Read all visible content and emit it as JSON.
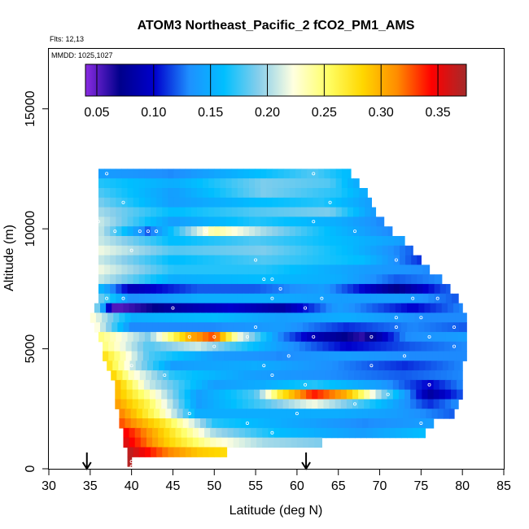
{
  "chart_data": {
    "type": "heatmap",
    "title": "ATOM3 Northeast_Pacific_2 fCO2_PM1_AMS",
    "flights_label": "Flts: 12,13",
    "mmdd_label": "MMDD: 1025,1027",
    "xlabel": "Latitude (deg N)",
    "ylabel": "Altitude (m)",
    "xlim": [
      30,
      85
    ],
    "ylim": [
      0,
      17500
    ],
    "xticks": [
      30,
      35,
      40,
      45,
      50,
      55,
      60,
      65,
      70,
      75,
      80,
      85
    ],
    "yticks": [
      0,
      5000,
      10000,
      15000
    ],
    "colorbar": {
      "range": [
        0.04,
        0.375
      ],
      "ticks": [
        0.05,
        0.1,
        0.15,
        0.2,
        0.25,
        0.3,
        0.35
      ],
      "tick_labels": [
        "0.05",
        "0.10",
        "0.15",
        "0.20",
        "0.25",
        "0.30",
        "0.35"
      ],
      "colors": [
        "#8a2be2",
        "#00008b",
        "#0000cd",
        "#1e90ff",
        "#00bfff",
        "#87ceeb",
        "#ffffe0",
        "#ffff66",
        "#ffd700",
        "#ff8c00",
        "#ff0000",
        "#a52a2a"
      ]
    },
    "arrows_latitude": [
      34.6,
      61.1
    ],
    "bands": [
      {
        "alt": 12300,
        "lat_min": 36.0,
        "lat_max": 66.5,
        "values": [
          [
            36,
            0.14
          ],
          [
            45,
            0.13
          ],
          [
            55,
            0.16
          ],
          [
            62,
            0.18
          ],
          [
            66,
            0.16
          ]
        ]
      },
      {
        "alt": 11900,
        "lat_min": 36.0,
        "lat_max": 67.5,
        "values": [
          [
            36,
            0.17
          ],
          [
            45,
            0.15
          ],
          [
            56,
            0.19
          ],
          [
            64,
            0.18
          ],
          [
            67,
            0.15
          ]
        ]
      },
      {
        "alt": 11500,
        "lat_min": 36.0,
        "lat_max": 68.5,
        "values": [
          [
            36,
            0.18
          ],
          [
            45,
            0.14
          ],
          [
            56,
            0.19
          ],
          [
            65,
            0.17
          ],
          [
            68,
            0.15
          ]
        ]
      },
      {
        "alt": 11100,
        "lat_min": 36.0,
        "lat_max": 69.0,
        "values": [
          [
            36,
            0.19
          ],
          [
            45,
            0.14
          ],
          [
            55,
            0.16
          ],
          [
            63,
            0.17
          ],
          [
            69,
            0.14
          ]
        ]
      },
      {
        "alt": 10700,
        "lat_min": 36.0,
        "lat_max": 69.5,
        "values": [
          [
            36,
            0.2
          ],
          [
            45,
            0.16
          ],
          [
            55,
            0.18
          ],
          [
            64,
            0.19
          ],
          [
            69,
            0.14
          ]
        ]
      },
      {
        "alt": 10300,
        "lat_min": 36.0,
        "lat_max": 70.5,
        "values": [
          [
            36,
            0.21
          ],
          [
            45,
            0.14
          ],
          [
            55,
            0.17
          ],
          [
            65,
            0.15
          ],
          [
            70,
            0.13
          ]
        ]
      },
      {
        "alt": 9900,
        "lat_min": 36.0,
        "lat_max": 71.5,
        "values": [
          [
            36,
            0.21
          ],
          [
            42,
            0.12
          ],
          [
            50,
            0.24
          ],
          [
            56,
            0.2
          ],
          [
            64,
            0.16
          ],
          [
            71,
            0.13
          ]
        ]
      },
      {
        "alt": 9500,
        "lat_min": 36.0,
        "lat_max": 73.0,
        "values": [
          [
            36,
            0.21
          ],
          [
            45,
            0.16
          ],
          [
            55,
            0.18
          ],
          [
            65,
            0.16
          ],
          [
            73,
            0.14
          ]
        ]
      },
      {
        "alt": 9100,
        "lat_min": 36.0,
        "lat_max": 74.0,
        "values": [
          [
            36,
            0.22
          ],
          [
            45,
            0.18
          ],
          [
            56,
            0.19
          ],
          [
            66,
            0.16
          ],
          [
            74,
            0.12
          ]
        ]
      },
      {
        "alt": 8700,
        "lat_min": 36.0,
        "lat_max": 75.0,
        "values": [
          [
            36,
            0.21
          ],
          [
            45,
            0.16
          ],
          [
            56,
            0.18
          ],
          [
            68,
            0.16
          ],
          [
            75,
            0.11
          ]
        ]
      },
      {
        "alt": 8300,
        "lat_min": 36.0,
        "lat_max": 76.0,
        "values": [
          [
            36,
            0.22
          ],
          [
            45,
            0.17
          ],
          [
            56,
            0.17
          ],
          [
            68,
            0.14
          ],
          [
            76,
            0.13
          ]
        ]
      },
      {
        "alt": 7900,
        "lat_min": 36.0,
        "lat_max": 77.5,
        "values": [
          [
            36,
            0.21
          ],
          [
            45,
            0.15
          ],
          [
            55,
            0.16
          ],
          [
            65,
            0.15
          ],
          [
            72,
            0.12
          ],
          [
            77,
            0.13
          ]
        ]
      },
      {
        "alt": 7500,
        "lat_min": 36.0,
        "lat_max": 78.5,
        "values": [
          [
            36,
            0.16
          ],
          [
            40,
            0.09
          ],
          [
            48,
            0.12
          ],
          [
            55,
            0.12
          ],
          [
            63,
            0.14
          ],
          [
            72,
            0.07
          ],
          [
            78,
            0.12
          ]
        ]
      },
      {
        "alt": 7100,
        "lat_min": 36.0,
        "lat_max": 79.5,
        "values": [
          [
            36,
            0.19
          ],
          [
            40,
            0.13
          ],
          [
            48,
            0.15
          ],
          [
            56,
            0.15
          ],
          [
            65,
            0.14
          ],
          [
            73,
            0.14
          ],
          [
            79,
            0.12
          ]
        ]
      },
      {
        "alt": 6700,
        "lat_min": 35.5,
        "lat_max": 80.0,
        "values": [
          [
            35.5,
            0.21
          ],
          [
            38,
            0.05
          ],
          [
            45,
            0.08
          ],
          [
            52,
            0.1
          ],
          [
            58,
            0.08
          ],
          [
            65,
            0.14
          ],
          [
            74,
            0.1
          ],
          [
            80,
            0.13
          ]
        ]
      },
      {
        "alt": 6300,
        "lat_min": 35.0,
        "lat_max": 80.5,
        "values": [
          [
            35,
            0.23
          ],
          [
            40,
            0.15
          ],
          [
            50,
            0.16
          ],
          [
            58,
            0.14
          ],
          [
            66,
            0.15
          ],
          [
            75,
            0.13
          ],
          [
            80,
            0.13
          ]
        ]
      },
      {
        "alt": 5900,
        "lat_min": 35.5,
        "lat_max": 80.5,
        "values": [
          [
            35.5,
            0.23
          ],
          [
            40,
            0.13
          ],
          [
            50,
            0.13
          ],
          [
            58,
            0.14
          ],
          [
            66,
            0.11
          ],
          [
            74,
            0.13
          ],
          [
            80,
            0.12
          ]
        ]
      },
      {
        "alt": 5500,
        "lat_min": 36.0,
        "lat_max": 80.5,
        "values": [
          [
            36,
            0.25
          ],
          [
            42,
            0.19
          ],
          [
            47,
            0.3
          ],
          [
            50,
            0.33
          ],
          [
            53,
            0.22
          ],
          [
            58,
            0.13
          ],
          [
            62,
            0.09
          ],
          [
            68,
            0.06
          ],
          [
            73,
            0.13
          ],
          [
            80,
            0.14
          ]
        ]
      },
      {
        "alt": 5100,
        "lat_min": 36.5,
        "lat_max": 80.5,
        "values": [
          [
            36.5,
            0.25
          ],
          [
            42,
            0.18
          ],
          [
            48,
            0.21
          ],
          [
            52,
            0.18
          ],
          [
            58,
            0.14
          ],
          [
            66,
            0.1
          ],
          [
            74,
            0.12
          ],
          [
            80,
            0.13
          ]
        ]
      },
      {
        "alt": 4700,
        "lat_min": 36.5,
        "lat_max": 80.5,
        "values": [
          [
            36.5,
            0.28
          ],
          [
            42,
            0.18
          ],
          [
            50,
            0.14
          ],
          [
            58,
            0.13
          ],
          [
            66,
            0.14
          ],
          [
            74,
            0.13
          ],
          [
            80,
            0.13
          ]
        ]
      },
      {
        "alt": 4300,
        "lat_min": 37.0,
        "lat_max": 80.0,
        "values": [
          [
            37,
            0.28
          ],
          [
            40,
            0.21
          ],
          [
            45,
            0.14
          ],
          [
            55,
            0.15
          ],
          [
            65,
            0.13
          ],
          [
            73,
            0.11
          ],
          [
            80,
            0.13
          ]
        ]
      },
      {
        "alt": 3900,
        "lat_min": 37.5,
        "lat_max": 80.0,
        "values": [
          [
            37.5,
            0.29
          ],
          [
            40,
            0.23
          ],
          [
            45,
            0.17
          ],
          [
            55,
            0.14
          ],
          [
            65,
            0.13
          ],
          [
            73,
            0.12
          ],
          [
            80,
            0.13
          ]
        ]
      },
      {
        "alt": 3500,
        "lat_min": 38.0,
        "lat_max": 80.0,
        "values": [
          [
            38,
            0.3
          ],
          [
            42,
            0.21
          ],
          [
            50,
            0.14
          ],
          [
            56,
            0.15
          ],
          [
            62,
            0.17
          ],
          [
            70,
            0.14
          ],
          [
            76,
            0.1
          ],
          [
            80,
            0.13
          ]
        ]
      },
      {
        "alt": 3100,
        "lat_min": 38.0,
        "lat_max": 80.0,
        "values": [
          [
            38,
            0.3
          ],
          [
            42,
            0.24
          ],
          [
            48,
            0.14
          ],
          [
            55,
            0.18
          ],
          [
            58,
            0.27
          ],
          [
            62,
            0.34
          ],
          [
            66,
            0.3
          ],
          [
            70,
            0.2
          ],
          [
            76,
            0.08
          ],
          [
            80,
            0.12
          ]
        ]
      },
      {
        "alt": 2700,
        "lat_min": 38.0,
        "lat_max": 79.5,
        "values": [
          [
            38,
            0.31
          ],
          [
            42,
            0.26
          ],
          [
            48,
            0.14
          ],
          [
            56,
            0.18
          ],
          [
            62,
            0.22
          ],
          [
            70,
            0.16
          ],
          [
            76,
            0.11
          ],
          [
            79,
            0.13
          ]
        ]
      },
      {
        "alt": 2300,
        "lat_min": 38.5,
        "lat_max": 79.0,
        "values": [
          [
            38.5,
            0.32
          ],
          [
            43,
            0.25
          ],
          [
            48,
            0.15
          ],
          [
            56,
            0.15
          ],
          [
            65,
            0.15
          ],
          [
            72,
            0.14
          ],
          [
            79,
            0.12
          ]
        ]
      },
      {
        "alt": 1900,
        "lat_min": 38.5,
        "lat_max": 76.5,
        "values": [
          [
            38.5,
            0.33
          ],
          [
            44,
            0.27
          ],
          [
            50,
            0.17
          ],
          [
            58,
            0.15
          ],
          [
            68,
            0.13
          ],
          [
            76,
            0.14
          ]
        ]
      },
      {
        "alt": 1500,
        "lat_min": 39.0,
        "lat_max": 75.5,
        "values": [
          [
            39,
            0.35
          ],
          [
            45,
            0.27
          ],
          [
            50,
            0.2
          ],
          [
            58,
            0.16
          ],
          [
            68,
            0.14
          ],
          [
            75,
            0.16
          ]
        ]
      },
      {
        "alt": 1100,
        "lat_min": 39.0,
        "lat_max": 63.0,
        "values": [
          [
            39,
            0.36
          ],
          [
            44,
            0.29
          ],
          [
            50,
            0.23
          ],
          [
            56,
            0.2
          ],
          [
            63,
            0.19
          ]
        ]
      },
      {
        "alt": 700,
        "lat_min": 39.5,
        "lat_max": 51.5,
        "values": [
          [
            39.5,
            0.37
          ],
          [
            44,
            0.32
          ],
          [
            48,
            0.29
          ],
          [
            51.5,
            0.28
          ]
        ]
      },
      {
        "alt": 300,
        "lat_min": 39.5,
        "lat_max": 40.0,
        "values": [
          [
            39.5,
            0.37
          ],
          [
            40,
            0.37
          ]
        ]
      }
    ],
    "sample_points": [
      [
        37,
        12300
      ],
      [
        62,
        12300
      ],
      [
        39,
        11100
      ],
      [
        64,
        11100
      ],
      [
        36,
        10300
      ],
      [
        62,
        10300
      ],
      [
        73,
        10300
      ],
      [
        38,
        9900
      ],
      [
        41,
        9900
      ],
      [
        42,
        9900
      ],
      [
        43,
        9900
      ],
      [
        49,
        9900
      ],
      [
        67,
        9900
      ],
      [
        40,
        9100
      ],
      [
        55,
        8700
      ],
      [
        72,
        8700
      ],
      [
        56,
        7900
      ],
      [
        57,
        7900
      ],
      [
        58,
        7500
      ],
      [
        37,
        7100
      ],
      [
        57,
        7100
      ],
      [
        63,
        7100
      ],
      [
        74,
        7100
      ],
      [
        77,
        7100
      ],
      [
        39,
        7100
      ],
      [
        45,
        6700
      ],
      [
        61,
        6700
      ],
      [
        72,
        6300
      ],
      [
        75,
        6300
      ],
      [
        55,
        5900
      ],
      [
        72,
        5900
      ],
      [
        79,
        5900
      ],
      [
        47,
        5500
      ],
      [
        50,
        5500
      ],
      [
        54,
        5500
      ],
      [
        62,
        5500
      ],
      [
        69,
        5500
      ],
      [
        76,
        5500
      ],
      [
        50,
        5100
      ],
      [
        79,
        5100
      ],
      [
        59,
        4700
      ],
      [
        73,
        4700
      ],
      [
        40,
        4300
      ],
      [
        56,
        4300
      ],
      [
        69,
        4300
      ],
      [
        44,
        3900
      ],
      [
        57,
        3900
      ],
      [
        61,
        3500
      ],
      [
        76,
        3500
      ],
      [
        71,
        3100
      ],
      [
        67,
        2700
      ],
      [
        47,
        2300
      ],
      [
        60,
        2300
      ],
      [
        75,
        1900
      ],
      [
        54,
        1900
      ],
      [
        57,
        1500
      ],
      [
        40,
        300
      ],
      [
        40,
        100
      ]
    ]
  }
}
